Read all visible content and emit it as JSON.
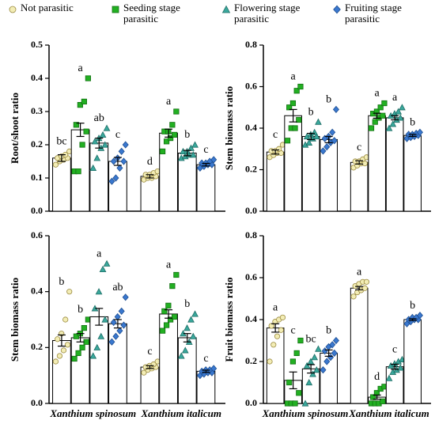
{
  "chart_data": [
    {
      "type": "bar",
      "ylabel": "Root/shoot ratio",
      "categories": [
        null,
        null
      ],
      "ylim": [
        0,
        0.5
      ],
      "yticks": [
        {
          "value": 0,
          "label": "0.0"
        },
        0.1,
        0.2,
        0.3,
        0.4,
        0.5
      ],
      "series": [
        {
          "name": "Not parasitic",
          "color": "#f3edb5",
          "marker": "circle",
          "values": [
            0.16,
            0.105
          ],
          "errors": [
            0.01,
            0.005
          ],
          "letters": [
            "bc",
            "d"
          ],
          "points": [
            [
              0.14,
              0.15,
              0.155,
              0.16,
              0.16,
              0.165,
              0.17,
              0.18
            ],
            [
              0.095,
              0.1,
              0.1,
              0.105,
              0.11,
              0.11,
              0.115,
              0.12
            ]
          ]
        },
        {
          "name": "Seeding stage parasitic",
          "color": "#22b022",
          "marker": "square",
          "values": [
            0.245,
            0.235
          ],
          "errors": [
            0.02,
            0.012
          ],
          "letters": [
            "a",
            "a"
          ],
          "points": [
            [
              0.12,
              0.12,
              0.2,
              0.24,
              0.26,
              0.32,
              0.33,
              0.4
            ],
            [
              0.18,
              0.21,
              0.22,
              0.23,
              0.24,
              0.24,
              0.26,
              0.3
            ]
          ]
        },
        {
          "name": "Flowering stage parasitic",
          "color": "#3aa89c",
          "marker": "triangle",
          "values": [
            0.205,
            0.175
          ],
          "errors": [
            0.015,
            0.008
          ],
          "letters": [
            "ab",
            "b"
          ],
          "points": [
            [
              0.13,
              0.16,
              0.19,
              0.2,
              0.21,
              0.22,
              0.23,
              0.25
            ],
            [
              0.16,
              0.165,
              0.17,
              0.17,
              0.18,
              0.18,
              0.19,
              0.2
            ]
          ]
        },
        {
          "name": "Fruiting stage parasitic",
          "color": "#3a78cf",
          "marker": "diamond",
          "values": [
            0.15,
            0.14
          ],
          "errors": [
            0.012,
            0.004
          ],
          "letters": [
            "c",
            "c"
          ],
          "points": [
            [
              0.09,
              0.1,
              0.13,
              0.15,
              0.15,
              0.16,
              0.18,
              0.2
            ],
            [
              0.13,
              0.135,
              0.14,
              0.14,
              0.145,
              0.145,
              0.15,
              0.155
            ]
          ]
        }
      ]
    },
    {
      "type": "bar",
      "ylabel": "Stem biomass ratio",
      "categories": [
        null,
        null
      ],
      "ylim": [
        0,
        0.8
      ],
      "yticks": [
        {
          "value": 0,
          "label": "0.0"
        },
        0.2,
        0.4,
        0.6,
        0.8
      ],
      "series": [
        {
          "color": "#f3edb5",
          "marker": "circle",
          "values": [
            0.285,
            0.235
          ],
          "errors": [
            0.01,
            0.008
          ],
          "letters": [
            "c",
            "c"
          ],
          "points": [
            [
              0.26,
              0.27,
              0.28,
              0.28,
              0.29,
              0.29,
              0.3,
              0.32
            ],
            [
              0.21,
              0.22,
              0.23,
              0.23,
              0.24,
              0.24,
              0.25,
              0.26
            ]
          ]
        },
        {
          "color": "#22b022",
          "marker": "square",
          "values": [
            0.46,
            0.46
          ],
          "errors": [
            0.03,
            0.012
          ],
          "letters": [
            "a",
            "a"
          ],
          "points": [
            [
              0.34,
              0.4,
              0.4,
              0.44,
              0.5,
              0.52,
              0.58,
              0.6
            ],
            [
              0.4,
              0.43,
              0.45,
              0.46,
              0.47,
              0.48,
              0.5,
              0.52
            ]
          ]
        },
        {
          "color": "#3aa89c",
          "marker": "triangle",
          "values": [
            0.36,
            0.45
          ],
          "errors": [
            0.015,
            0.01
          ],
          "letters": [
            "b",
            "a"
          ],
          "points": [
            [
              0.32,
              0.33,
              0.35,
              0.36,
              0.36,
              0.37,
              0.38,
              0.43
            ],
            [
              0.4,
              0.42,
              0.44,
              0.45,
              0.46,
              0.47,
              0.48,
              0.5
            ]
          ]
        },
        {
          "color": "#3a78cf",
          "marker": "diamond",
          "values": [
            0.345,
            0.365
          ],
          "errors": [
            0.015,
            0.005
          ],
          "letters": [
            "b",
            "b"
          ],
          "points": [
            [
              0.29,
              0.31,
              0.33,
              0.34,
              0.35,
              0.36,
              0.38,
              0.49
            ],
            [
              0.35,
              0.355,
              0.36,
              0.365,
              0.37,
              0.37,
              0.375,
              0.38
            ]
          ]
        }
      ]
    },
    {
      "type": "bar",
      "ylabel": "Stem biomass ratio",
      "categories": [
        "Xanthium spinosum",
        "Xanthium italicum"
      ],
      "ylim": [
        0,
        0.6
      ],
      "yticks": [
        {
          "value": 0,
          "label": "0.0"
        },
        0.2,
        0.4,
        0.6
      ],
      "series": [
        {
          "color": "#f3edb5",
          "marker": "circle",
          "values": [
            0.225,
            0.13
          ],
          "errors": [
            0.02,
            0.005
          ],
          "letters": [
            "b",
            "c"
          ],
          "points": [
            [
              0.15,
              0.17,
              0.19,
              0.21,
              0.23,
              0.25,
              0.3,
              0.4
            ],
            [
              0.11,
              0.12,
              0.125,
              0.13,
              0.13,
              0.135,
              0.14,
              0.15
            ]
          ]
        },
        {
          "color": "#22b022",
          "marker": "square",
          "values": [
            0.235,
            0.32
          ],
          "errors": [
            0.015,
            0.015
          ],
          "letters": [
            "b",
            "a"
          ],
          "points": [
            [
              0.16,
              0.18,
              0.2,
              0.22,
              0.24,
              0.25,
              0.27,
              0.3
            ],
            [
              0.26,
              0.28,
              0.3,
              0.31,
              0.33,
              0.35,
              0.42,
              0.46
            ]
          ]
        },
        {
          "color": "#3aa89c",
          "marker": "triangle",
          "values": [
            0.31,
            0.235
          ],
          "errors": [
            0.03,
            0.015
          ],
          "letters": [
            "a",
            "b"
          ],
          "points": [
            [
              0.17,
              0.2,
              0.24,
              0.3,
              0.34,
              0.4,
              0.48,
              0.5
            ],
            [
              0.17,
              0.19,
              0.22,
              0.24,
              0.25,
              0.27,
              0.3,
              0.32
            ]
          ]
        },
        {
          "color": "#3a78cf",
          "marker": "diamond",
          "values": [
            0.285,
            0.115
          ],
          "errors": [
            0.015,
            0.004
          ],
          "letters": [
            "ab",
            "c"
          ],
          "points": [
            [
              0.22,
              0.24,
              0.26,
              0.28,
              0.29,
              0.31,
              0.33,
              0.38
            ],
            [
              0.1,
              0.105,
              0.11,
              0.11,
              0.115,
              0.12,
              0.12,
              0.125
            ]
          ]
        }
      ]
    },
    {
      "type": "bar",
      "ylabel": "Fruit biomass ratio",
      "categories": [
        "Xanthium spinosum",
        "Xanthium italicum"
      ],
      "ylim": [
        0,
        0.8
      ],
      "yticks": [
        {
          "value": 0,
          "label": "0.0"
        },
        0.2,
        0.4,
        0.6,
        0.8
      ],
      "series": [
        {
          "color": "#f3edb5",
          "marker": "circle",
          "values": [
            0.36,
            0.55
          ],
          "errors": [
            0.02,
            0.008
          ],
          "letters": [
            "a",
            "a"
          ],
          "points": [
            [
              0.2,
              0.28,
              0.32,
              0.35,
              0.37,
              0.39,
              0.4,
              0.41
            ],
            [
              0.51,
              0.53,
              0.54,
              0.55,
              0.56,
              0.57,
              0.58,
              0.58
            ]
          ]
        },
        {
          "color": "#22b022",
          "marker": "square",
          "values": [
            0.11,
            0.03
          ],
          "errors": [
            0.04,
            0.01
          ],
          "letters": [
            "c",
            "d"
          ],
          "points": [
            [
              0,
              0,
              0,
              0.05,
              0.1,
              0.2,
              0.24,
              0.3
            ],
            [
              0,
              0,
              0,
              0.01,
              0.03,
              0.05,
              0.07,
              0.08
            ]
          ]
        },
        {
          "color": "#3aa89c",
          "marker": "triangle",
          "values": [
            0.165,
            0.175
          ],
          "errors": [
            0.02,
            0.012
          ],
          "letters": [
            "bc",
            "c"
          ],
          "points": [
            [
              0,
              0.1,
              0.14,
              0.16,
              0.18,
              0.2,
              0.22,
              0.26
            ],
            [
              0.12,
              0.15,
              0.16,
              0.17,
              0.18,
              0.19,
              0.2,
              0.21
            ]
          ]
        },
        {
          "color": "#3a78cf",
          "marker": "diamond",
          "values": [
            0.24,
            0.4
          ],
          "errors": [
            0.015,
            0.004
          ],
          "letters": [
            "b",
            "b"
          ],
          "points": [
            [
              0.16,
              0.2,
              0.22,
              0.24,
              0.25,
              0.27,
              0.28,
              0.3
            ],
            [
              0.38,
              0.39,
              0.4,
              0.4,
              0.4,
              0.41,
              0.41,
              0.42
            ]
          ]
        }
      ]
    }
  ]
}
